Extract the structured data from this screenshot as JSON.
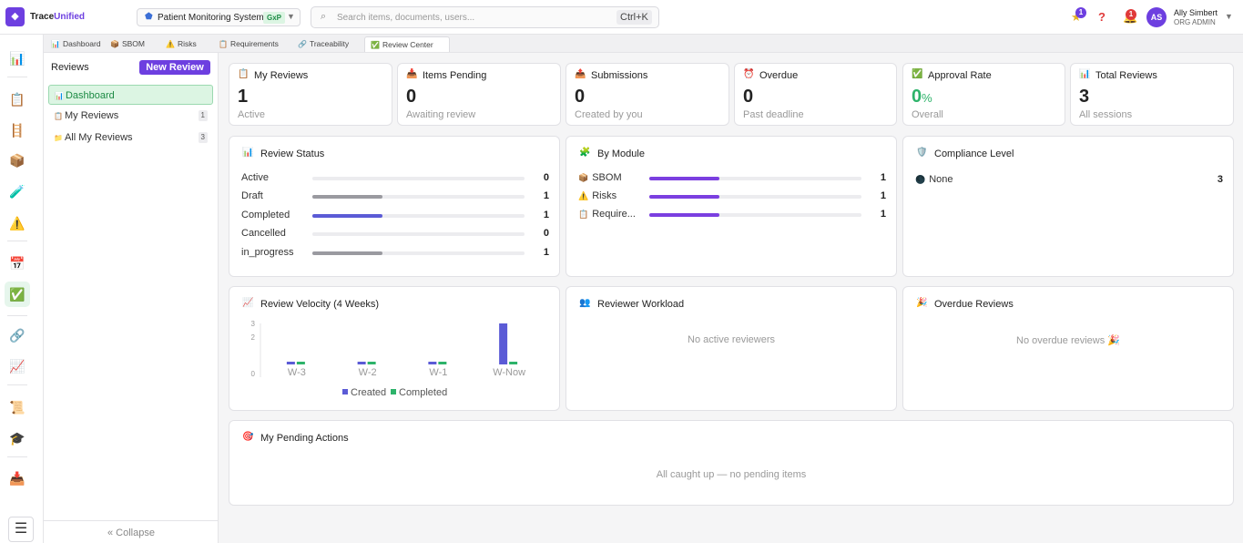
{
  "app": {
    "logo_glyph": "◆",
    "name_part1": "Trace",
    "name_part2": "Unified",
    "accent_color": "#6d3fe0"
  },
  "project": {
    "name": "Patient Monitoring System",
    "tag": "GxP"
  },
  "search": {
    "placeholder": "Search items, documents, users...",
    "shortcut": "Ctrl+K"
  },
  "topbar": {
    "star_badge": "1",
    "notification_badge": "1",
    "user_initials": "AS",
    "user_name": "Ally Simbert",
    "user_role": "ORG ADMIN"
  },
  "tabs": [
    {
      "label": "Dashboard",
      "icon": "dashboard-icon"
    },
    {
      "label": "SBOM",
      "icon": "package-icon"
    },
    {
      "label": "Risks",
      "icon": "warning-icon"
    },
    {
      "label": "Requirements",
      "icon": "clipboard-icon"
    },
    {
      "label": "Traceability",
      "icon": "link-icon"
    },
    {
      "label": "Review Center",
      "icon": "check-icon",
      "active": true
    }
  ],
  "sidebar": {
    "title": "Reviews",
    "new_button": "New Review",
    "items": [
      {
        "label": "Dashboard",
        "count": ""
      },
      {
        "label": "My Reviews",
        "count": "1"
      },
      {
        "label": "All My Reviews",
        "count": "3"
      }
    ],
    "collapse": "« Collapse"
  },
  "stats": [
    {
      "label": "My Reviews",
      "value": "1",
      "sub": "Active",
      "icon": "clipboard-icon"
    },
    {
      "label": "Items Pending",
      "value": "0",
      "sub": "Awaiting review",
      "icon": "inbox-icon"
    },
    {
      "label": "Submissions",
      "value": "0",
      "sub": "Created by you",
      "icon": "outbox-icon"
    },
    {
      "label": "Overdue",
      "value": "0",
      "sub": "Past deadline",
      "icon": "alarm-icon"
    },
    {
      "label": "Approval Rate",
      "value": "0",
      "unit": "%",
      "sub": "Overall",
      "icon": "check-icon"
    },
    {
      "label": "Total Reviews",
      "value": "3",
      "sub": "All sessions",
      "icon": "bar-chart-icon"
    }
  ],
  "review_status": {
    "title": "Review Status",
    "rows": [
      {
        "label": "Active",
        "value": "0",
        "fraction": 0,
        "color": "#9a9aa0"
      },
      {
        "label": "Draft",
        "value": "1",
        "fraction": 0.33,
        "color": "#9a9aa0"
      },
      {
        "label": "Completed",
        "value": "1",
        "fraction": 0.33,
        "color": "#5b5bd6"
      },
      {
        "label": "Cancelled",
        "value": "0",
        "fraction": 0,
        "color": "#9a9aa0"
      },
      {
        "label": "in_progress",
        "value": "1",
        "fraction": 0.33,
        "color": "#9a9aa0"
      }
    ]
  },
  "by_module": {
    "title": "By Module",
    "rows": [
      {
        "label": "SBOM",
        "value": "1",
        "fraction": 0.33,
        "color": "#7b3fe0",
        "icon": "package-icon"
      },
      {
        "label": "Risks",
        "value": "1",
        "fraction": 0.33,
        "color": "#7b3fe0",
        "icon": "warning-icon"
      },
      {
        "label": "Require...",
        "value": "1",
        "fraction": 0.33,
        "color": "#7b3fe0",
        "icon": "clipboard-icon"
      }
    ]
  },
  "compliance": {
    "title": "Compliance Level",
    "rows": [
      {
        "label": "None",
        "value": "3"
      }
    ]
  },
  "velocity": {
    "title": "Review Velocity (4 Weeks)"
  },
  "chart_data": {
    "type": "bar",
    "categories": [
      "W-3",
      "W-2",
      "W-1",
      "W-Now"
    ],
    "series": [
      {
        "name": "Created",
        "values": [
          0,
          0,
          0,
          3
        ],
        "color": "#5b5bd6"
      },
      {
        "name": "Completed",
        "values": [
          0,
          0,
          0,
          0
        ],
        "color": "#2db36a"
      }
    ],
    "yticks": [
      "0",
      "2",
      "3"
    ],
    "ylim": [
      0,
      3
    ],
    "legend_position": "bottom"
  },
  "workload": {
    "title": "Reviewer Workload",
    "empty": "No active reviewers"
  },
  "overdue_reviews": {
    "title": "Overdue Reviews",
    "empty": "No overdue reviews 🎉"
  },
  "pending": {
    "title": "My Pending Actions",
    "empty": "All caught up — no pending items"
  }
}
